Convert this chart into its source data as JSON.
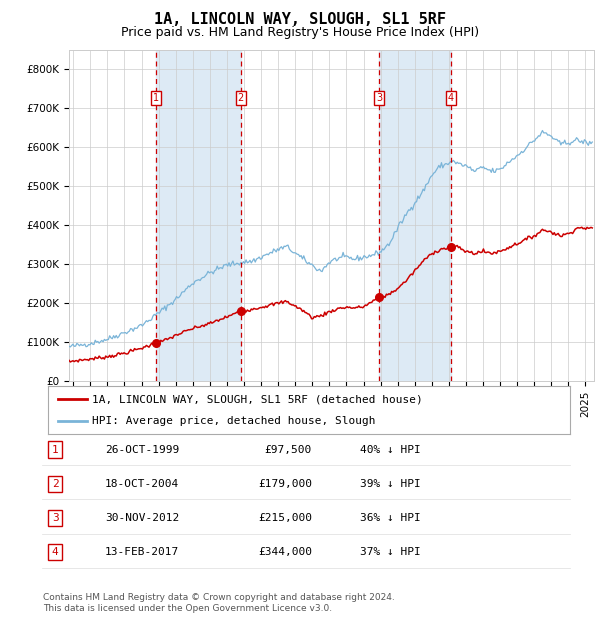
{
  "title": "1A, LINCOLN WAY, SLOUGH, SL1 5RF",
  "subtitle": "Price paid vs. HM Land Registry's House Price Index (HPI)",
  "ylim": [
    0,
    850000
  ],
  "yticks": [
    0,
    100000,
    200000,
    300000,
    400000,
    500000,
    600000,
    700000,
    800000
  ],
  "ytick_labels": [
    "£0",
    "£100K",
    "£200K",
    "£300K",
    "£400K",
    "£500K",
    "£600K",
    "£700K",
    "£800K"
  ],
  "xlim_start": 1994.75,
  "xlim_end": 2025.5,
  "xticks": [
    1995,
    1996,
    1997,
    1998,
    1999,
    2000,
    2001,
    2002,
    2003,
    2004,
    2005,
    2006,
    2007,
    2008,
    2009,
    2010,
    2011,
    2012,
    2013,
    2014,
    2015,
    2016,
    2017,
    2018,
    2019,
    2020,
    2021,
    2022,
    2023,
    2024,
    2025
  ],
  "hpi_color": "#7ab4d8",
  "property_color": "#cc0000",
  "vline_color": "#cc0000",
  "shade_color": "#ddeaf5",
  "grid_color": "#cccccc",
  "bg_color": "#ffffff",
  "transactions": [
    {
      "num": 1,
      "date": "26-OCT-1999",
      "year": 1999.82,
      "price": 97500,
      "pct": "40%"
    },
    {
      "num": 2,
      "date": "18-OCT-2004",
      "year": 2004.8,
      "price": 179000,
      "pct": "39%"
    },
    {
      "num": 3,
      "date": "30-NOV-2012",
      "year": 2012.92,
      "price": 215000,
      "pct": "36%"
    },
    {
      "num": 4,
      "date": "13-FEB-2017",
      "year": 2017.12,
      "price": 344000,
      "pct": "37%"
    }
  ],
  "legend_property": "1A, LINCOLN WAY, SLOUGH, SL1 5RF (detached house)",
  "legend_hpi": "HPI: Average price, detached house, Slough",
  "footnote": "Contains HM Land Registry data © Crown copyright and database right 2024.\nThis data is licensed under the Open Government Licence v3.0.",
  "title_fontsize": 11,
  "subtitle_fontsize": 9,
  "tick_fontsize": 7.5,
  "legend_fontsize": 8,
  "table_fontsize": 8,
  "footnote_fontsize": 6.5
}
